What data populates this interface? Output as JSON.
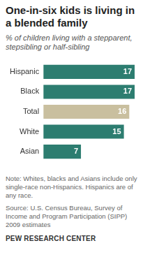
{
  "chart_data": {
    "type": "bar",
    "orientation": "horizontal",
    "title": "One-in-six kids is living in a blended family",
    "subtitle": "% of children living with a stepparent, stepsibling or half-sibling",
    "categories": [
      "Hispanic",
      "Black",
      "Total",
      "White",
      "Asian"
    ],
    "values": [
      17,
      17,
      16,
      15,
      7
    ],
    "colors": [
      "#2d7d70",
      "#2d7d70",
      "#c9bf9f",
      "#2d7d70",
      "#2d7d70"
    ],
    "xlim": [
      0,
      17
    ],
    "data_labels": true,
    "tick_labels": "y",
    "grid": false,
    "note": "Note: Whites, blacks and Asians include only single-race non-Hispanics. Hispanics are of any race.",
    "source": "Source: U.S. Census Bureau, Survey of Income and Program Participation (SIPP) 2009 estimates",
    "credit": "PEW RESEARCH CENTER"
  }
}
